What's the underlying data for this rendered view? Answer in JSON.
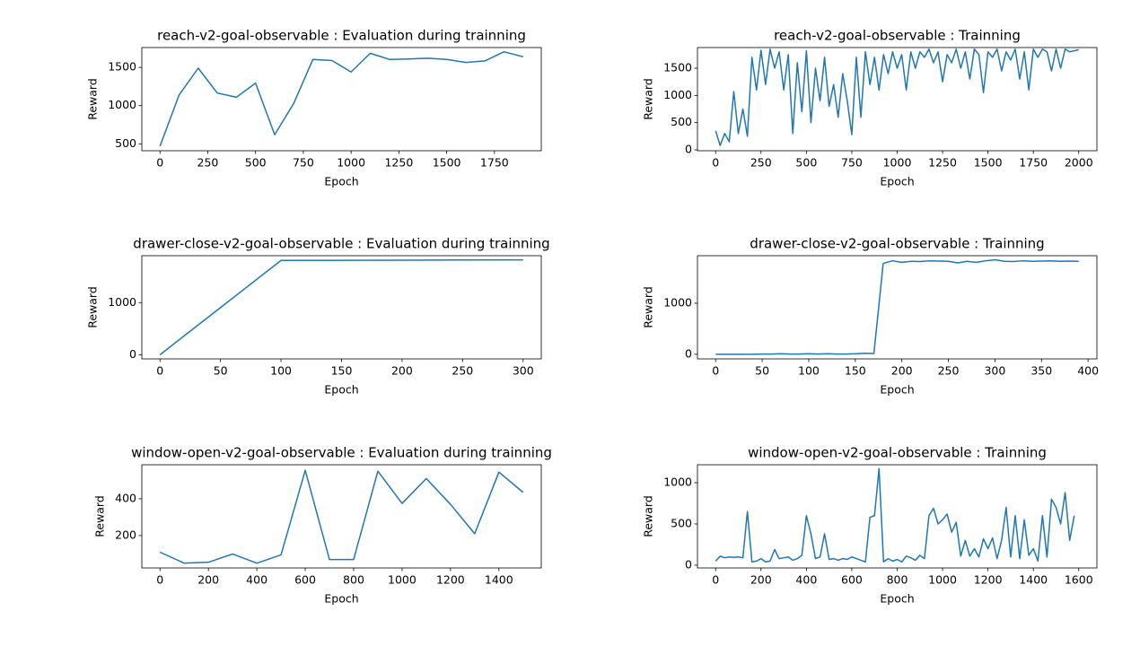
{
  "chart_data": [
    {
      "type": "line",
      "title": "reach-v2-goal-observable : Evaluation during trainning",
      "xlabel": "Epoch",
      "ylabel": "Reward",
      "color": "#1f77b4",
      "x": [
        0,
        100,
        200,
        300,
        400,
        500,
        600,
        700,
        800,
        900,
        1000,
        1100,
        1200,
        1300,
        1400,
        1500,
        1600,
        1700,
        1800,
        1900
      ],
      "values": [
        470,
        1140,
        1490,
        1165,
        1110,
        1295,
        620,
        1030,
        1605,
        1590,
        1440,
        1685,
        1605,
        1610,
        1620,
        1605,
        1565,
        1585,
        1705,
        1640
      ],
      "xlim": [
        -95,
        1995
      ],
      "ylim": [
        410,
        1760
      ],
      "xticks": [
        0,
        250,
        500,
        750,
        1000,
        1250,
        1500,
        1750
      ],
      "yticks": [
        500,
        1000,
        1500
      ]
    },
    {
      "type": "line",
      "title": "reach-v2-goal-observable : Trainning",
      "xlabel": "Epoch",
      "ylabel": "Reward",
      "color": "#1f77b4",
      "x": [
        0,
        25,
        50,
        75,
        100,
        125,
        150,
        175,
        200,
        225,
        250,
        275,
        300,
        325,
        350,
        375,
        400,
        425,
        450,
        475,
        500,
        525,
        550,
        575,
        600,
        625,
        650,
        675,
        700,
        725,
        750,
        775,
        800,
        825,
        850,
        875,
        900,
        925,
        950,
        975,
        1000,
        1025,
        1050,
        1075,
        1100,
        1125,
        1150,
        1175,
        1200,
        1225,
        1250,
        1275,
        1300,
        1325,
        1350,
        1375,
        1400,
        1425,
        1450,
        1475,
        1500,
        1525,
        1550,
        1575,
        1600,
        1625,
        1650,
        1675,
        1700,
        1725,
        1750,
        1775,
        1800,
        1825,
        1850,
        1875,
        1900,
        1925,
        1950,
        1975,
        2000
      ],
      "values": [
        350,
        80,
        300,
        150,
        1070,
        300,
        750,
        250,
        1700,
        1100,
        1830,
        1200,
        1850,
        1500,
        1800,
        1100,
        1750,
        300,
        1600,
        700,
        1820,
        500,
        1500,
        900,
        1700,
        800,
        1200,
        600,
        1400,
        900,
        280,
        1700,
        600,
        1800,
        1200,
        1700,
        1100,
        1750,
        1400,
        1800,
        1500,
        1750,
        1100,
        1800,
        1500,
        1800,
        1700,
        1850,
        1600,
        1800,
        1250,
        1750,
        1600,
        1850,
        1500,
        1800,
        1300,
        1850,
        1750,
        1050,
        1800,
        1700,
        1850,
        1450,
        1800,
        1650,
        1850,
        1300,
        1800,
        1100,
        1850,
        1700,
        1850,
        1800,
        1450,
        1850,
        1500,
        1850,
        1800,
        1820,
        1840
      ],
      "xlim": [
        -100,
        2100
      ],
      "ylim": [
        -16,
        1879
      ],
      "xticks": [
        0,
        250,
        500,
        750,
        1000,
        1250,
        1500,
        1750,
        2000
      ],
      "yticks": [
        0,
        500,
        1000,
        1500
      ]
    },
    {
      "type": "line",
      "title": "drawer-close-v2-goal-observable : Evaluation during trainning",
      "xlabel": "Epoch",
      "ylabel": "Reward",
      "color": "#1f77b4",
      "x": [
        0,
        100,
        200,
        300
      ],
      "values": [
        0,
        1810,
        1815,
        1820
      ],
      "xlim": [
        -15,
        315
      ],
      "ylim": [
        -80,
        1900
      ],
      "xticks": [
        0,
        50,
        100,
        150,
        200,
        250,
        300
      ],
      "yticks": [
        0,
        1000
      ]
    },
    {
      "type": "line",
      "title": "drawer-close-v2-goal-observable : Trainning",
      "xlabel": "Epoch",
      "ylabel": "Reward",
      "color": "#1f77b4",
      "x": [
        0,
        10,
        20,
        30,
        40,
        50,
        60,
        70,
        80,
        90,
        100,
        110,
        120,
        130,
        140,
        150,
        160,
        170,
        180,
        190,
        200,
        210,
        220,
        230,
        240,
        250,
        260,
        270,
        280,
        290,
        300,
        310,
        320,
        330,
        340,
        350,
        360,
        370,
        380,
        390
      ],
      "values": [
        0,
        0,
        0,
        0,
        0,
        5,
        5,
        10,
        5,
        5,
        10,
        5,
        10,
        5,
        5,
        10,
        20,
        15,
        1780,
        1830,
        1800,
        1820,
        1815,
        1830,
        1825,
        1820,
        1790,
        1820,
        1800,
        1830,
        1850,
        1820,
        1815,
        1830,
        1820,
        1825,
        1830,
        1820,
        1825,
        1820
      ],
      "xlim": [
        -19.5,
        409.5
      ],
      "ylim": [
        -90,
        1930
      ],
      "xticks": [
        0,
        50,
        100,
        150,
        200,
        250,
        300,
        350,
        400
      ],
      "yticks": [
        0,
        1000
      ]
    },
    {
      "type": "line",
      "title": "window-open-v2-goal-observable : Evaluation during trainning",
      "xlabel": "Epoch",
      "ylabel": "Reward",
      "color": "#1f77b4",
      "x": [
        0,
        100,
        200,
        300,
        400,
        500,
        600,
        700,
        800,
        900,
        1000,
        1100,
        1200,
        1300,
        1400,
        1500
      ],
      "values": [
        110,
        50,
        55,
        100,
        50,
        95,
        555,
        70,
        70,
        550,
        375,
        510,
        370,
        210,
        545,
        435
      ],
      "xlim": [
        -75,
        1575
      ],
      "ylim": [
        24,
        585
      ],
      "xticks": [
        0,
        200,
        400,
        600,
        800,
        1000,
        1200,
        1400
      ],
      "yticks": [
        200,
        400
      ]
    },
    {
      "type": "line",
      "title": "window-open-v2-goal-observable : Trainning",
      "xlabel": "Epoch",
      "ylabel": "Reward",
      "color": "#1f77b4",
      "x": [
        0,
        20,
        40,
        60,
        80,
        100,
        120,
        140,
        160,
        180,
        200,
        220,
        240,
        260,
        280,
        300,
        320,
        340,
        360,
        380,
        400,
        420,
        440,
        460,
        480,
        500,
        520,
        540,
        560,
        580,
        600,
        620,
        640,
        660,
        680,
        700,
        720,
        740,
        760,
        780,
        800,
        820,
        840,
        860,
        880,
        900,
        920,
        940,
        960,
        980,
        1000,
        1020,
        1040,
        1060,
        1080,
        1100,
        1120,
        1140,
        1160,
        1180,
        1200,
        1220,
        1240,
        1260,
        1280,
        1300,
        1320,
        1340,
        1360,
        1380,
        1400,
        1420,
        1440,
        1460,
        1480,
        1500,
        1520,
        1540,
        1560,
        1580
      ],
      "values": [
        50,
        110,
        90,
        100,
        95,
        100,
        90,
        650,
        40,
        50,
        80,
        40,
        50,
        190,
        80,
        90,
        100,
        60,
        80,
        120,
        600,
        380,
        80,
        100,
        380,
        70,
        80,
        60,
        80,
        70,
        100,
        80,
        60,
        40,
        580,
        600,
        1170,
        40,
        80,
        50,
        70,
        40,
        110,
        90,
        60,
        120,
        80,
        600,
        690,
        500,
        550,
        620,
        400,
        520,
        110,
        300,
        110,
        200,
        100,
        320,
        200,
        330,
        80,
        300,
        700,
        100,
        600,
        80,
        550,
        120,
        200,
        50,
        600,
        100,
        800,
        700,
        500,
        880,
        300,
        600
      ],
      "xlim": [
        -80,
        1680
      ],
      "ylim": [
        -33,
        1217
      ],
      "xticks": [
        0,
        200,
        400,
        600,
        800,
        1000,
        1200,
        1400,
        1600
      ],
      "yticks": [
        0,
        500,
        1000
      ]
    }
  ]
}
